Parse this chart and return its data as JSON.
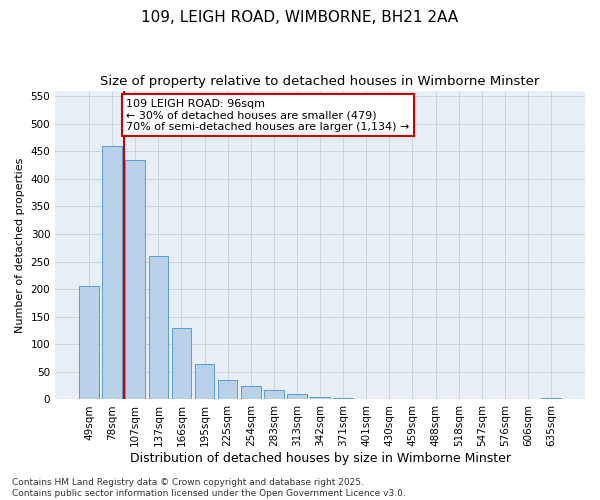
{
  "title": "109, LEIGH ROAD, WIMBORNE, BH21 2AA",
  "subtitle": "Size of property relative to detached houses in Wimborne Minster",
  "xlabel": "Distribution of detached houses by size in Wimborne Minster",
  "ylabel": "Number of detached properties",
  "categories": [
    "49sqm",
    "78sqm",
    "107sqm",
    "137sqm",
    "166sqm",
    "195sqm",
    "225sqm",
    "254sqm",
    "283sqm",
    "313sqm",
    "342sqm",
    "371sqm",
    "401sqm",
    "430sqm",
    "459sqm",
    "488sqm",
    "518sqm",
    "547sqm",
    "576sqm",
    "606sqm",
    "635sqm"
  ],
  "values": [
    205,
    460,
    435,
    260,
    130,
    65,
    35,
    25,
    18,
    10,
    5,
    2,
    1,
    1,
    1,
    1,
    1,
    1,
    1,
    1,
    3
  ],
  "bar_color": "#b8d0e8",
  "bar_edge_color": "#5b9bd5",
  "vline_x": 1.5,
  "vline_color": "#cc0000",
  "annotation_text": "109 LEIGH ROAD: 96sqm\n← 30% of detached houses are smaller (479)\n70% of semi-detached houses are larger (1,134) →",
  "annotation_box_facecolor": "#ffffff",
  "annotation_box_edgecolor": "#cc0000",
  "ylim": [
    0,
    560
  ],
  "yticks": [
    0,
    50,
    100,
    150,
    200,
    250,
    300,
    350,
    400,
    450,
    500,
    550
  ],
  "grid_color": "#c8d4e0",
  "background_color": "#e8eef5",
  "footer": "Contains HM Land Registry data © Crown copyright and database right 2025.\nContains public sector information licensed under the Open Government Licence v3.0.",
  "title_fontsize": 11,
  "subtitle_fontsize": 9.5,
  "xlabel_fontsize": 9,
  "ylabel_fontsize": 8,
  "tick_fontsize": 7.5,
  "footer_fontsize": 6.5,
  "annot_fontsize": 8
}
